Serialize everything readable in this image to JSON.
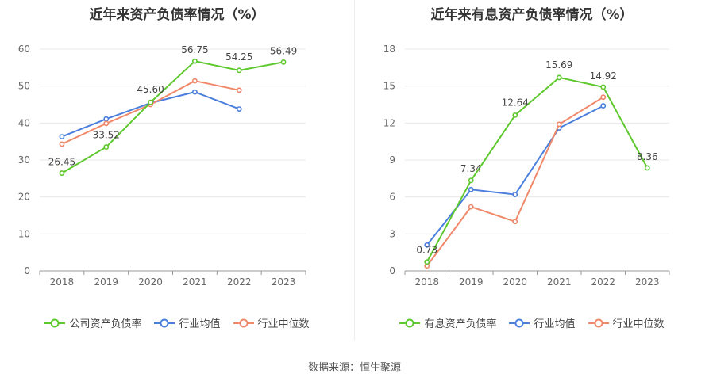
{
  "source": "数据来源：恒生聚源",
  "chart_data": [
    {
      "type": "line",
      "title": "近年来资产负债率情况（%）",
      "categories": [
        "2018",
        "2019",
        "2020",
        "2021",
        "2022",
        "2023"
      ],
      "ylim": [
        0,
        60
      ],
      "yticks": [
        0,
        10,
        20,
        30,
        40,
        50,
        60
      ],
      "grid": true,
      "legend_position": "bottom",
      "series": [
        {
          "name": "公司资产负债率",
          "color": "#5ec82d",
          "values": [
            26.45,
            33.52,
            45.6,
            56.75,
            54.25,
            56.49
          ],
          "labels": [
            "26.45",
            "33.52",
            "45.60",
            "56.75",
            "54.25",
            "56.49"
          ]
        },
        {
          "name": "行业均值",
          "color": "#4a7fdd",
          "values": [
            36.3,
            41.1,
            45.4,
            48.4,
            43.8,
            null
          ]
        },
        {
          "name": "行业中位数",
          "color": "#f0886a",
          "values": [
            34.3,
            39.9,
            45.0,
            51.4,
            48.9,
            null
          ]
        }
      ]
    },
    {
      "type": "line",
      "title": "近年来有息资产负债率情况（%）",
      "categories": [
        "2018",
        "2019",
        "2020",
        "2021",
        "2022",
        "2023"
      ],
      "ylim": [
        0,
        18
      ],
      "yticks": [
        0,
        3,
        6,
        9,
        12,
        15,
        18
      ],
      "grid": true,
      "legend_position": "bottom",
      "series": [
        {
          "name": "有息资产负债率",
          "color": "#5ec82d",
          "values": [
            0.73,
            7.34,
            12.64,
            15.69,
            14.92,
            8.36
          ],
          "labels": [
            "0.73",
            "7.34",
            "12.64",
            "15.69",
            "14.92",
            "8.36"
          ]
        },
        {
          "name": "行业均值",
          "color": "#4a7fdd",
          "values": [
            2.1,
            6.6,
            6.2,
            11.6,
            13.4,
            null
          ]
        },
        {
          "name": "行业中位数",
          "color": "#f0886a",
          "values": [
            0.4,
            5.2,
            4.0,
            11.9,
            14.1,
            null
          ]
        }
      ]
    }
  ]
}
